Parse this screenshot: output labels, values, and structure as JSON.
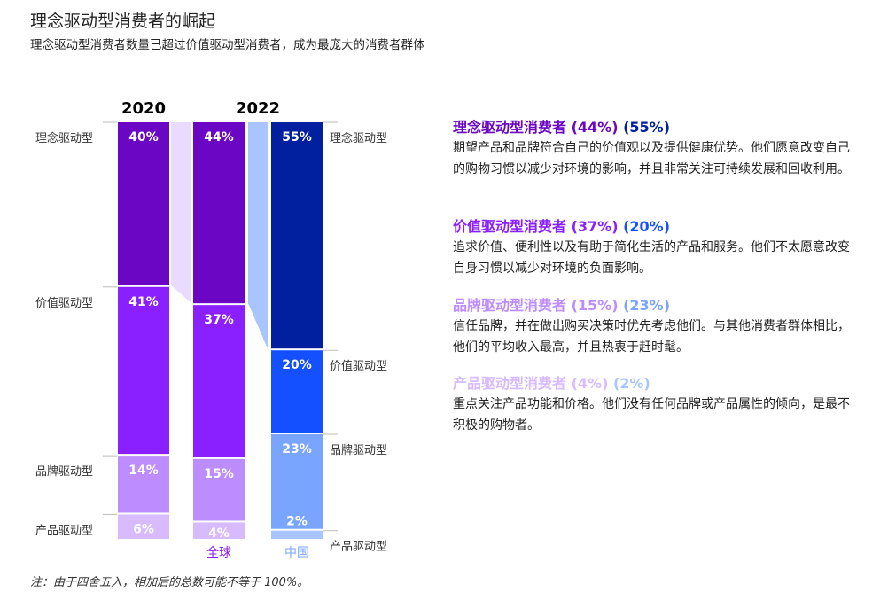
{
  "title": "理念驱动型消费者的崛起",
  "subtitle": "理念驱动型消费者数量已超过价值驱动型消费者，成为最庞大的消费者群体",
  "note": "注：由于四舍五入，相加后的总数可能不等于 100%。",
  "chart_data": {
    "type": "bar",
    "stacked": true,
    "year_labels": [
      "2020",
      "2022"
    ],
    "categories": [
      "理念驱动型",
      "价值驱动型",
      "品牌驱动型",
      "产品驱动型"
    ],
    "bars": [
      {
        "name": "",
        "year": "2020",
        "values": [
          40,
          41,
          14,
          6
        ],
        "colors": [
          "#6a06c4",
          "#8a1fff",
          "#bd8cff",
          "#d8baff"
        ]
      },
      {
        "name": "全球",
        "year": "2022",
        "values": [
          44,
          37,
          15,
          4
        ],
        "colors": [
          "#6a06c4",
          "#8a1fff",
          "#bd8cff",
          "#d8baff"
        ],
        "name_color": "#8a1fff"
      },
      {
        "name": "中国",
        "year": "2022",
        "values": [
          55,
          20,
          23,
          2
        ],
        "colors": [
          "#00209f",
          "#1450ff",
          "#7aa5ff",
          "#a8c5ff"
        ],
        "name_color": "#7aa5ff"
      }
    ],
    "connector_colors": [
      "#e8dbff",
      "#a8c5ff"
    ],
    "value_suffix": "%"
  },
  "descriptions": [
    {
      "heading": "理念驱动型消费者",
      "global": "(44%)",
      "china": "(55%)",
      "global_color": "#6a06c4",
      "china_color": "#00209f",
      "text": "期望产品和品牌符合自己的价值观以及提供健康优势。他们愿意改变自己的购物习惯以减少对环境的影响，并且非常关注可持续发展和回收利用。"
    },
    {
      "heading": "价值驱动型消费者",
      "global": "(37%)",
      "china": "(20%)",
      "global_color": "#8a1fff",
      "china_color": "#1450ff",
      "text": "追求价值、便利性以及有助于简化生活的产品和服务。他们不太愿意改变自身习惯以减少对环境的负面影响。"
    },
    {
      "heading": "品牌驱动型消费者",
      "global": "(15%)",
      "china": "(23%)",
      "global_color": "#bd8cff",
      "china_color": "#7aa5ff",
      "text": "信任品牌，并在做出购买决策时优先考虑他们。与其他消费者群体相比，他们的平均收入最高，并且热衷于赶时髦。"
    },
    {
      "heading": "产品驱动型消费者",
      "global": "(4%)",
      "china": "(2%)",
      "global_color": "#d8baff",
      "china_color": "#a8c5ff",
      "text": "重点关注产品功能和价格。他们没有任何品牌或产品属性的倾向，是最不积极的购物者。"
    }
  ]
}
